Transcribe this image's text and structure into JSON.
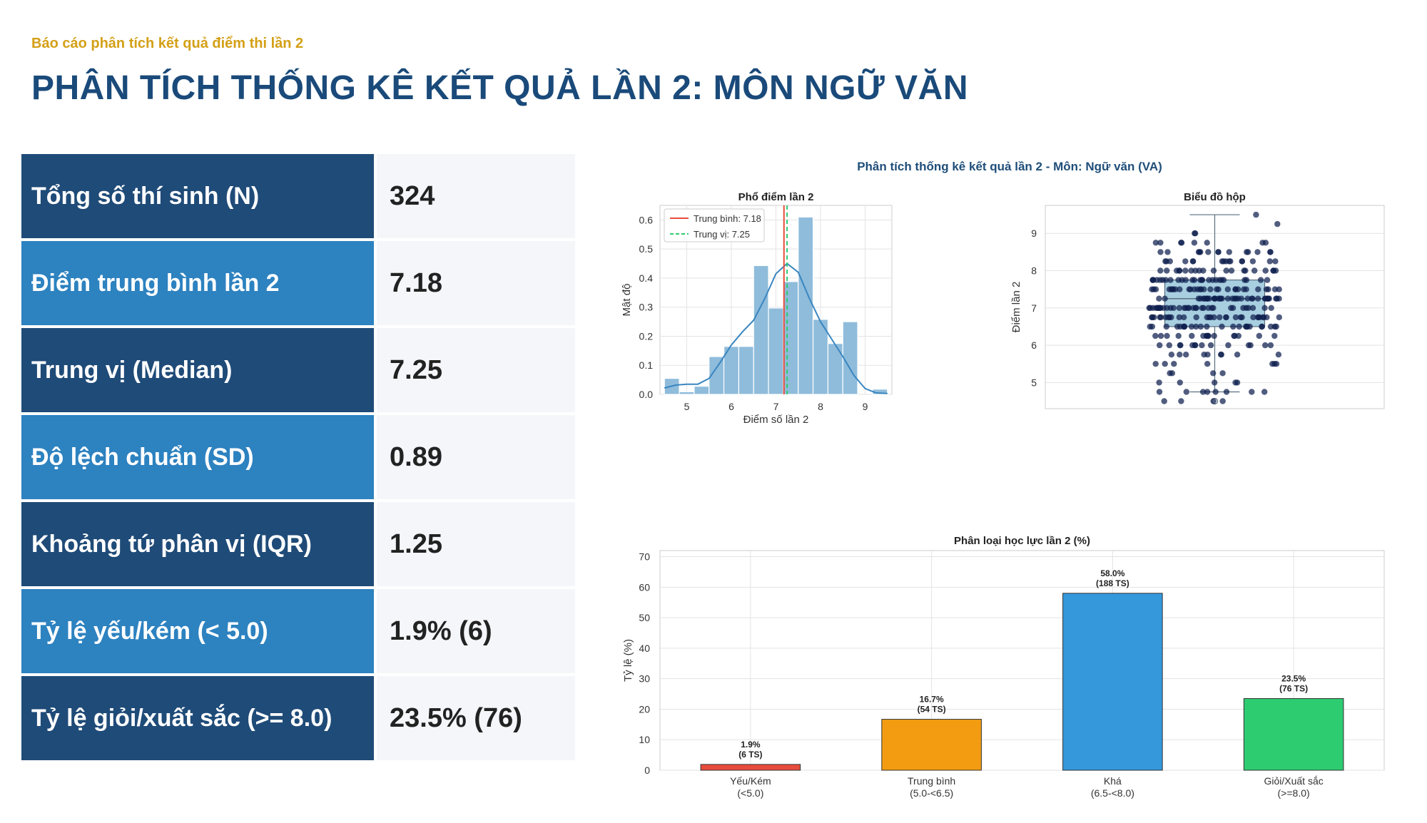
{
  "header": {
    "subtitle": "Báo cáo phân tích kết quả điểm thi lần 2",
    "title": "PHÂN TÍCH THỐNG KÊ KẾT QUẢ LẦN 2: MÔN NGỮ VĂN"
  },
  "stats": [
    {
      "label": "Tổng số thí sinh (N)",
      "value": "324"
    },
    {
      "label": "Điểm trung bình lần 2",
      "value": "7.18"
    },
    {
      "label": "Trung vị (Median)",
      "value": "7.25"
    },
    {
      "label": "Độ lệch chuẩn (SD)",
      "value": "0.89"
    },
    {
      "label": "Khoảng tứ phân vị (IQR)",
      "value": "1.25"
    },
    {
      "label": "Tỷ lệ yếu/kém (< 5.0)",
      "value": "1.9% (6)"
    },
    {
      "label": "Tỷ lệ giỏi/xuất sắc (>= 8.0)",
      "value": "23.5% (76)"
    }
  ],
  "figure_title": "Phân tích thống kê kết quả lần 2 - Môn: Ngữ văn (VA)",
  "colors": {
    "hist_bar": "#8fbcdb",
    "kde": "#3a86c0",
    "mean_line": "#e74c3c",
    "median_line": "#2ecc71",
    "box_fill": "#a8cfe0",
    "strip_dot": "#0e1f4d"
  },
  "chart_data": [
    {
      "type": "bar",
      "title": "Phổ điểm lần 2",
      "xlabel": "Điểm số lần 2",
      "ylabel": "Mật độ",
      "xlim": [
        4.4,
        9.6
      ],
      "ylim": [
        0,
        0.65
      ],
      "xticks": [
        "5",
        "6",
        "7",
        "8",
        "9"
      ],
      "yticks": [
        "0.0",
        "0.1",
        "0.2",
        "0.3",
        "0.4",
        "0.5",
        "0.6"
      ],
      "bin_edges": [
        4.5,
        4.833,
        5.167,
        5.5,
        5.833,
        6.167,
        6.5,
        6.833,
        7.167,
        7.5,
        7.833,
        8.167,
        8.5,
        8.833,
        9.167,
        9.5
      ],
      "values": [
        0.055,
        0.009,
        0.028,
        0.13,
        0.165,
        0.165,
        0.443,
        0.297,
        0.388,
        0.61,
        0.258,
        0.175,
        0.25,
        0.0,
        0.018
      ],
      "kde": {
        "x": [
          4.5,
          4.75,
          5.0,
          5.25,
          5.5,
          5.75,
          6.0,
          6.25,
          6.5,
          6.75,
          7.0,
          7.25,
          7.5,
          7.75,
          8.0,
          8.25,
          8.5,
          8.75,
          9.0,
          9.25,
          9.5
        ],
        "y": [
          0.022,
          0.032,
          0.035,
          0.035,
          0.055,
          0.11,
          0.17,
          0.215,
          0.255,
          0.33,
          0.415,
          0.45,
          0.42,
          0.33,
          0.25,
          0.19,
          0.13,
          0.065,
          0.02,
          0.005,
          0.003
        ]
      },
      "mean": 7.18,
      "median": 7.25,
      "legend": [
        {
          "label": "Trung bình: 7.18",
          "style": "solid"
        },
        {
          "label": "Trung vị: 7.25",
          "style": "dashed"
        }
      ],
      "grid": true,
      "legend_position": "top-left"
    },
    {
      "type": "box",
      "title": "Biểu đồ hộp",
      "ylabel": "Điểm lần 2",
      "ylim": [
        4.3,
        9.75
      ],
      "yticks": [
        "5",
        "6",
        "7",
        "8",
        "9"
      ],
      "q1": 6.5,
      "median": 7.25,
      "q3": 7.75,
      "whisker_low": 4.75,
      "whisker_high": 9.5,
      "outliers": [
        4.5
      ],
      "grid": true
    },
    {
      "type": "bar",
      "title": "Phân loại học lực lần 2 (%)",
      "ylabel": "Tỷ lệ (%)",
      "ylim": [
        0,
        72
      ],
      "yticks": [
        "0",
        "10",
        "20",
        "30",
        "40",
        "50",
        "60",
        "70"
      ],
      "categories": [
        {
          "line1": "Yếu/Kém",
          "line2": "(<5.0)"
        },
        {
          "line1": "Trung bình",
          "line2": "(5.0-<6.5)"
        },
        {
          "line1": "Khá",
          "line2": "(6.5-<8.0)"
        },
        {
          "line1": "Giỏi/Xuất sắc",
          "line2": "(>=8.0)"
        }
      ],
      "values": [
        1.9,
        16.7,
        58.0,
        23.5
      ],
      "labels": [
        {
          "pct": "1.9%",
          "count": "(6 TS)"
        },
        {
          "pct": "16.7%",
          "count": "(54 TS)"
        },
        {
          "pct": "58.0%",
          "count": "(188 TS)"
        },
        {
          "pct": "23.5%",
          "count": "(76 TS)"
        }
      ],
      "bar_colors": [
        "#e74c3c",
        "#f39c12",
        "#3498db",
        "#2ecc71"
      ],
      "grid": true
    }
  ]
}
